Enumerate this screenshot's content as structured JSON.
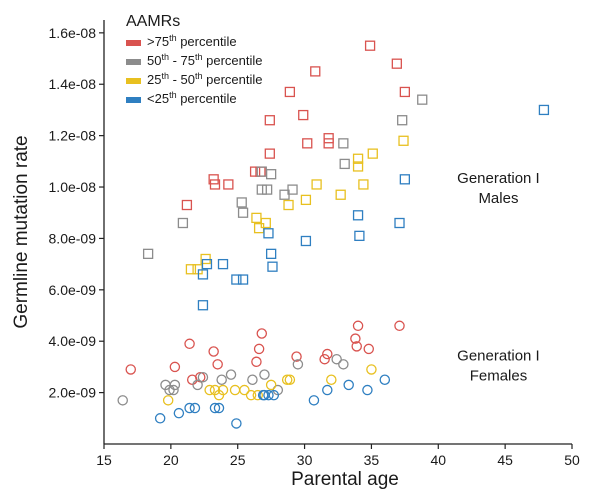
{
  "chart_data": {
    "type": "scatter",
    "xlabel": "Parental age",
    "ylabel": "Germline mutation rate",
    "xlim": [
      15,
      50
    ],
    "ylim": [
      0,
      1.65e-08
    ],
    "x_ticks": [
      15,
      20,
      25,
      30,
      35,
      40,
      45,
      50
    ],
    "x_tick_labels": [
      "15",
      "20",
      "25",
      "30",
      "35",
      "40",
      "45",
      "50"
    ],
    "y_ticks": [
      2e-09,
      4e-09,
      6e-09,
      8e-09,
      1e-08,
      1.2e-08,
      1.4e-08,
      1.6e-08
    ],
    "y_tick_labels": [
      "2.0e-09",
      "4.0e-09",
      "6.0e-09",
      "8.0e-09",
      "1.0e-08",
      "1.2e-08",
      "1.4e-08",
      "1.6e-08"
    ],
    "grid": false,
    "legend": {
      "title": "AAMRs",
      "placement": "top-left",
      "entries": [
        {
          "pre": ">75",
          "sup": "th",
          "post": " percentile",
          "color": "#d9534f"
        },
        {
          "pre": "50",
          "sup": "th",
          "mid": " - 75",
          "sup2": "th",
          "post": " percentile",
          "color": "#8c8c8c"
        },
        {
          "pre": "25",
          "sup": "th",
          "mid": " - 50",
          "sup2": "th",
          "post": " percentile",
          "color": "#e8c020"
        },
        {
          "pre": "<25",
          "sup": "th",
          "post": " percentile",
          "color": "#2f7fc1"
        }
      ]
    },
    "annotations": [
      {
        "lines": [
          "Generation I",
          "Males"
        ],
        "x": 44.5,
        "y": 1e-08
      },
      {
        "lines": [
          "Generation I",
          "Females"
        ],
        "x": 44.5,
        "y": 3.1e-09
      }
    ],
    "series": [
      {
        "name": ">75th percentile",
        "group": "Males",
        "marker": "square",
        "color": "#d9534f",
        "points": [
          [
            21.2,
            9.3e-09
          ],
          [
            23.2,
            1.03e-08
          ],
          [
            23.3,
            1.01e-08
          ],
          [
            24.3,
            1.01e-08
          ],
          [
            26.3,
            1.06e-08
          ],
          [
            26.7,
            1.06e-08
          ],
          [
            27.4,
            1.13e-08
          ],
          [
            27.4,
            1.26e-08
          ],
          [
            28.9,
            1.37e-08
          ],
          [
            29.9,
            1.28e-08
          ],
          [
            30.2,
            1.17e-08
          ],
          [
            30.8,
            1.45e-08
          ],
          [
            31.8,
            1.19e-08
          ],
          [
            31.8,
            1.17e-08
          ],
          [
            34.9,
            1.55e-08
          ],
          [
            36.9,
            1.48e-08
          ],
          [
            37.5,
            1.37e-08
          ]
        ]
      },
      {
        "name": "50th - 75th percentile",
        "group": "Males",
        "marker": "square",
        "color": "#8c8c8c",
        "points": [
          [
            18.3,
            7.4e-09
          ],
          [
            20.9,
            8.6e-09
          ],
          [
            25.3,
            9.4e-09
          ],
          [
            25.4,
            9e-09
          ],
          [
            26.8,
            1.06e-08
          ],
          [
            26.8,
            9.9e-09
          ],
          [
            27.2,
            9.9e-09
          ],
          [
            27.5,
            1.05e-08
          ],
          [
            28.5,
            9.7e-09
          ],
          [
            29.1,
            9.9e-09
          ],
          [
            32.9,
            1.17e-08
          ],
          [
            33.0,
            1.09e-08
          ],
          [
            37.3,
            1.26e-08
          ],
          [
            38.8,
            1.34e-08
          ]
        ]
      },
      {
        "name": "25th - 50th percentile",
        "group": "Males",
        "marker": "square",
        "color": "#e8c020",
        "points": [
          [
            21.5,
            6.8e-09
          ],
          [
            22.0,
            6.8e-09
          ],
          [
            22.6,
            7.2e-09
          ],
          [
            26.4,
            8.8e-09
          ],
          [
            26.6,
            8.4e-09
          ],
          [
            27.1,
            8.6e-09
          ],
          [
            28.8,
            9.3e-09
          ],
          [
            30.1,
            9.5e-09
          ],
          [
            30.9,
            1.01e-08
          ],
          [
            32.7,
            9.7e-09
          ],
          [
            34.0,
            1.08e-08
          ],
          [
            34.0,
            1.11e-08
          ],
          [
            34.4,
            1.01e-08
          ],
          [
            35.1,
            1.13e-08
          ],
          [
            37.4,
            1.18e-08
          ]
        ]
      },
      {
        "name": "<25th percentile",
        "group": "Males",
        "marker": "square",
        "color": "#2f7fc1",
        "points": [
          [
            22.4,
            5.4e-09
          ],
          [
            22.4,
            6.6e-09
          ],
          [
            22.7,
            7e-09
          ],
          [
            23.9,
            7e-09
          ],
          [
            24.9,
            6.4e-09
          ],
          [
            25.4,
            6.4e-09
          ],
          [
            27.3,
            8.2e-09
          ],
          [
            27.5,
            7.4e-09
          ],
          [
            27.6,
            6.9e-09
          ],
          [
            30.1,
            7.9e-09
          ],
          [
            34.0,
            8.9e-09
          ],
          [
            34.1,
            8.1e-09
          ],
          [
            37.1,
            8.6e-09
          ],
          [
            37.5,
            1.03e-08
          ],
          [
            47.9,
            1.3e-08
          ]
        ]
      },
      {
        "name": ">75th percentile",
        "group": "Females",
        "marker": "circle",
        "color": "#d9534f",
        "points": [
          [
            17.0,
            2.9e-09
          ],
          [
            20.3,
            3e-09
          ],
          [
            21.4,
            3.9e-09
          ],
          [
            21.6,
            2.5e-09
          ],
          [
            22.2,
            2.6e-09
          ],
          [
            23.2,
            3.6e-09
          ],
          [
            23.5,
            3.1e-09
          ],
          [
            26.4,
            3.2e-09
          ],
          [
            26.6,
            3.7e-09
          ],
          [
            26.8,
            4.3e-09
          ],
          [
            29.4,
            3.4e-09
          ],
          [
            31.5,
            3.3e-09
          ],
          [
            31.7,
            3.5e-09
          ],
          [
            33.8,
            4.1e-09
          ],
          [
            33.9,
            3.8e-09
          ],
          [
            34.0,
            4.6e-09
          ],
          [
            34.8,
            3.7e-09
          ],
          [
            37.1,
            4.6e-09
          ]
        ]
      },
      {
        "name": "50th - 75th percentile",
        "group": "Females",
        "marker": "circle",
        "color": "#8c8c8c",
        "points": [
          [
            16.4,
            1.7e-09
          ],
          [
            19.6,
            2.3e-09
          ],
          [
            19.9,
            2.1e-09
          ],
          [
            20.3,
            2.3e-09
          ],
          [
            20.2,
            2.1e-09
          ],
          [
            22.0,
            2.3e-09
          ],
          [
            22.4,
            2.6e-09
          ],
          [
            23.8,
            2.5e-09
          ],
          [
            24.5,
            2.7e-09
          ],
          [
            26.1,
            2.5e-09
          ],
          [
            27.0,
            2.7e-09
          ],
          [
            28.0,
            2.1e-09
          ],
          [
            29.5,
            3.1e-09
          ],
          [
            32.4,
            3.3e-09
          ],
          [
            32.9,
            3.1e-09
          ]
        ]
      },
      {
        "name": "25th - 50th percentile",
        "group": "Females",
        "marker": "circle",
        "color": "#e8c020",
        "points": [
          [
            19.8,
            1.7e-09
          ],
          [
            22.9,
            2.1e-09
          ],
          [
            23.3,
            2.1e-09
          ],
          [
            23.6,
            1.9e-09
          ],
          [
            23.9,
            2.1e-09
          ],
          [
            24.8,
            2.1e-09
          ],
          [
            25.5,
            2.1e-09
          ],
          [
            26.0,
            1.9e-09
          ],
          [
            26.5,
            1.9e-09
          ],
          [
            27.5,
            2.3e-09
          ],
          [
            28.7,
            2.5e-09
          ],
          [
            28.9,
            2.5e-09
          ],
          [
            32.0,
            2.5e-09
          ],
          [
            35.0,
            2.9e-09
          ]
        ]
      },
      {
        "name": "<25th percentile",
        "group": "Females",
        "marker": "circle",
        "color": "#2f7fc1",
        "points": [
          [
            19.2,
            1e-09
          ],
          [
            20.6,
            1.2e-09
          ],
          [
            21.4,
            1.4e-09
          ],
          [
            21.8,
            1.4e-09
          ],
          [
            23.3,
            1.4e-09
          ],
          [
            23.6,
            1.4e-09
          ],
          [
            24.9,
            8e-10
          ],
          [
            26.9,
            1.9e-09
          ],
          [
            27.0,
            1.9e-09
          ],
          [
            27.3,
            1.9e-09
          ],
          [
            27.7,
            1.9e-09
          ],
          [
            30.7,
            1.7e-09
          ],
          [
            31.7,
            2.1e-09
          ],
          [
            33.3,
            2.3e-09
          ],
          [
            34.7,
            2.1e-09
          ],
          [
            36.0,
            2.5e-09
          ]
        ]
      }
    ]
  }
}
